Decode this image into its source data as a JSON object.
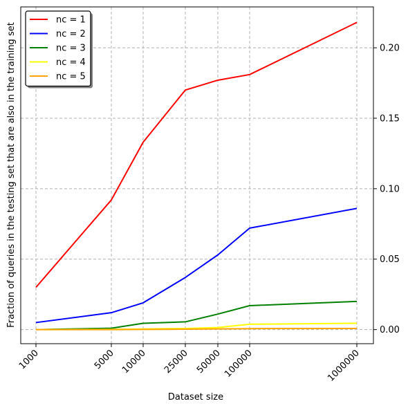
{
  "chart_data": {
    "type": "line",
    "title": "",
    "xlabel": "Dataset size",
    "ylabel": "Fraction of queries in the testing set that are also in the training set",
    "x": [
      1000,
      5000,
      10000,
      25000,
      50000,
      100000,
      1000000
    ],
    "x_tick_labels": [
      "1000",
      "5000",
      "10000",
      "25000",
      "50000",
      "100000",
      "1000000"
    ],
    "x_scale": "categorical-like (ticks unevenly spaced as in original)",
    "y_ticks": [
      0.0,
      0.05,
      0.1,
      0.15,
      0.2
    ],
    "y_tick_labels": [
      "0.00",
      "0.05",
      "0.10",
      "0.15",
      "0.20"
    ],
    "ylim": [
      -0.01,
      0.229
    ],
    "grid": true,
    "legend_position": "top-left",
    "y_axis_side": "right",
    "series": [
      {
        "name": "nc = 1",
        "color": "#ff0000",
        "values": [
          0.03,
          0.092,
          0.133,
          0.17,
          0.177,
          0.181,
          0.218
        ]
      },
      {
        "name": "nc = 2",
        "color": "#0000ff",
        "values": [
          0.005,
          0.012,
          0.019,
          0.037,
          0.053,
          0.072,
          0.086
        ]
      },
      {
        "name": "nc = 3",
        "color": "#008000",
        "values": [
          0.0,
          0.001,
          0.0045,
          0.0055,
          0.011,
          0.017,
          0.02
        ]
      },
      {
        "name": "nc = 4",
        "color": "#ffff00",
        "values": [
          0.0,
          0.0002,
          0.0004,
          0.0008,
          0.0015,
          0.0038,
          0.0045
        ]
      },
      {
        "name": "nc = 5",
        "color": "#ffa500",
        "values": [
          0.0,
          0.0,
          0.0001,
          0.0003,
          0.0005,
          0.0007,
          0.0008
        ]
      }
    ]
  }
}
